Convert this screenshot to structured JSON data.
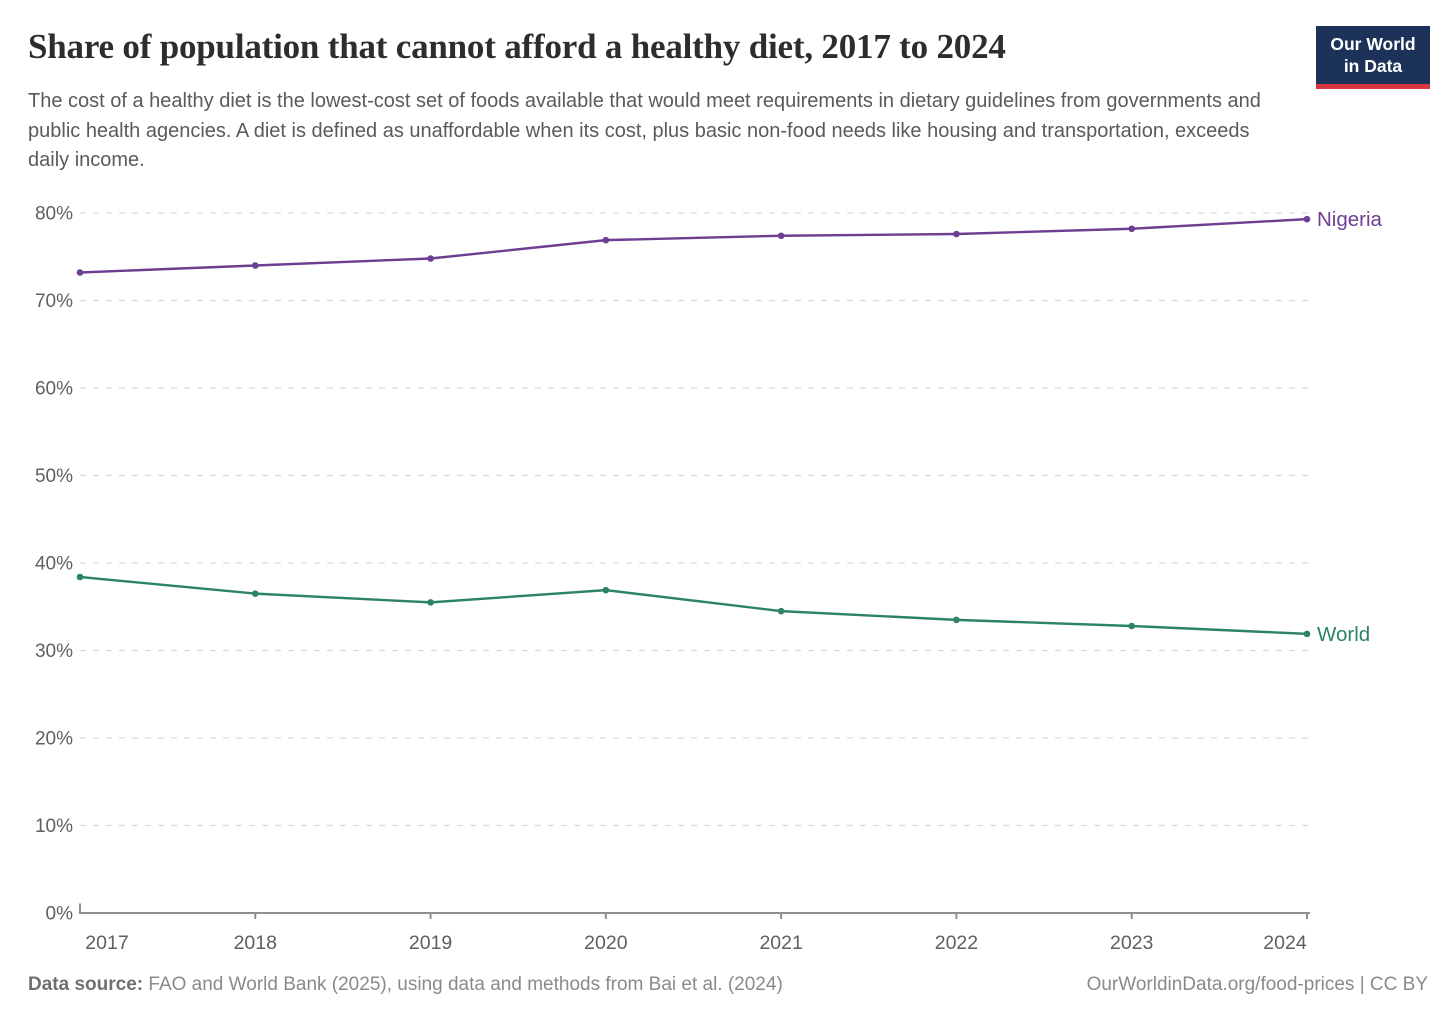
{
  "header": {
    "title": "Share of population that cannot afford a healthy diet, 2017 to 2024",
    "subtitle": "The cost of a healthy diet is the lowest-cost set of foods available that would meet requirements in dietary guidelines from governments and public health agencies. A diet is defined as unaffordable when its cost, plus basic non-food needs like housing and transportation, exceeds daily income.",
    "logo": {
      "line1": "Our World",
      "line2": "in Data",
      "bg_color": "#1d3258",
      "accent_color": "#d8353f"
    }
  },
  "chart_data": {
    "type": "line",
    "title": "Share of population that cannot afford a healthy diet, 2017 to 2024",
    "x": [
      2017,
      2018,
      2019,
      2020,
      2021,
      2022,
      2023,
      2024
    ],
    "series": [
      {
        "name": "Nigeria",
        "color": "#6D3E91",
        "values": [
          73.2,
          74.0,
          74.8,
          76.9,
          77.4,
          77.6,
          78.2,
          79.3
        ]
      },
      {
        "name": "World",
        "color": "#2C8465",
        "values": [
          38.4,
          36.5,
          35.5,
          36.9,
          34.5,
          33.5,
          32.8,
          31.9
        ]
      }
    ],
    "xlabel": "",
    "ylabel": "",
    "ylim": [
      0,
      80
    ],
    "ytick_step": 10,
    "ytick_suffix": "%",
    "xtick_labels": [
      "2017",
      "2018",
      "2019",
      "2020",
      "2021",
      "2022",
      "2023",
      "2024"
    ],
    "ytick_labels": [
      "0%",
      "10%",
      "20%",
      "30%",
      "40%",
      "50%",
      "60%",
      "70%",
      "80%"
    ],
    "grid": "horizontal-dashed",
    "gridline_color": "#d9d9d9",
    "axis_color": "#8f8f8f",
    "tick_label_color": "#5f5f5f",
    "legend_position": "end-of-line-labels",
    "markers": true
  },
  "footer": {
    "source_label": "Data source:",
    "source_text": " FAO and World Bank (2025), using data and methods from Bai et al. (2024)",
    "link_text": "OurWorldinData.org/food-prices | CC BY"
  }
}
